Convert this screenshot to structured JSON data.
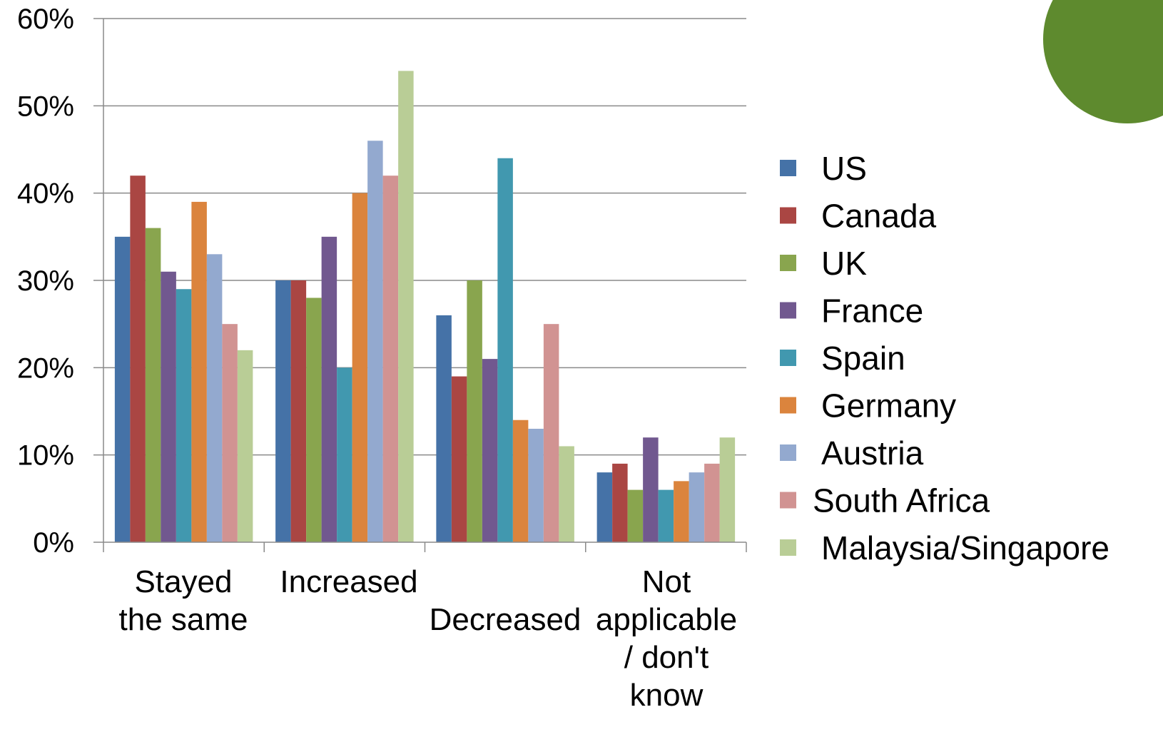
{
  "chart_data": {
    "type": "bar",
    "categories": [
      [
        "Stayed",
        "the same"
      ],
      [
        "Increased"
      ],
      [
        "Decreased"
      ],
      [
        "Not",
        "applicable",
        "/ don't",
        "know"
      ]
    ],
    "y_ticks": [
      "0%",
      "10%",
      "20%",
      "30%",
      "40%",
      "50%",
      "60%"
    ],
    "ylim": [
      0,
      60
    ],
    "y_unit": "%",
    "grid": true,
    "legend_position": "right",
    "series": [
      {
        "name": "US",
        "color": "#4572A7",
        "values": [
          35,
          30,
          26,
          8
        ]
      },
      {
        "name": "Canada",
        "color": "#AA4643",
        "values": [
          42,
          30,
          19,
          9
        ]
      },
      {
        "name": "UK",
        "color": "#89A54E",
        "values": [
          36,
          28,
          30,
          6
        ]
      },
      {
        "name": "France",
        "color": "#71588F",
        "values": [
          31,
          35,
          21,
          12
        ]
      },
      {
        "name": "Spain",
        "color": "#4198AF",
        "values": [
          29,
          20,
          44,
          6
        ]
      },
      {
        "name": "Germany",
        "color": "#DB843D",
        "values": [
          39,
          40,
          14,
          7
        ]
      },
      {
        "name": "Austria",
        "color": "#93A9CF",
        "values": [
          33,
          46,
          13,
          8
        ]
      },
      {
        "name": "South Africa",
        "color": "#D19392",
        "values": [
          25,
          42,
          25,
          9
        ]
      },
      {
        "name": "Malaysia/Singapore",
        "color": "#B9CD96",
        "values": [
          22,
          54,
          11,
          12
        ]
      }
    ]
  },
  "decoration": {
    "corner_circle_color": "#5E8A2E"
  }
}
